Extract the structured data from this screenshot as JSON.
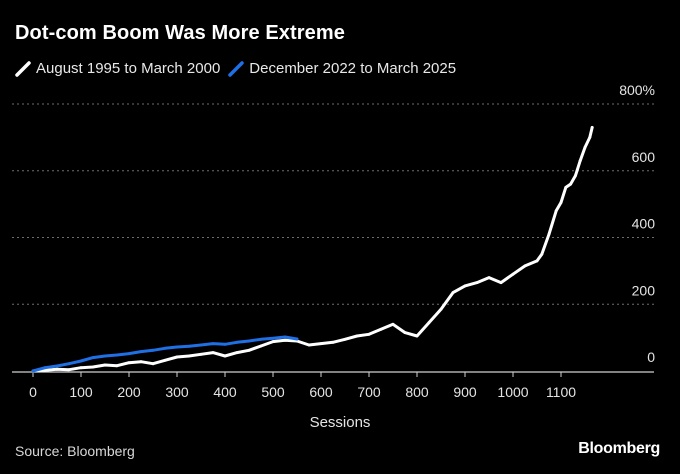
{
  "title": "Dot-com Boom Was More Extreme",
  "source": "Source: Bloomberg",
  "brand": "Bloomberg",
  "colors": {
    "background": "#000000",
    "series1": "#ffffff",
    "series2": "#1f6fe5",
    "grid": "#6e6e6e"
  },
  "chart_data": {
    "type": "line",
    "title": "Dot-com Boom Was More Extreme",
    "xlabel": "Sessions",
    "ylabel": "",
    "xlim": [
      -5,
      1260
    ],
    "ylim": [
      -5,
      820
    ],
    "x_ticks": [
      0,
      100,
      200,
      300,
      400,
      500,
      600,
      700,
      800,
      900,
      1000,
      1100
    ],
    "y_ticks": [
      0,
      200,
      400,
      600,
      800
    ],
    "y_tick_labels": [
      "0",
      "200",
      "400",
      "600",
      "800%"
    ],
    "grid": "horizontal dotted",
    "legend_position": "top-left",
    "series": [
      {
        "name": "August 1995 to March 2000",
        "color": "#ffffff",
        "x": [
          0,
          25,
          50,
          75,
          100,
          125,
          150,
          175,
          200,
          225,
          250,
          275,
          300,
          325,
          350,
          375,
          400,
          425,
          450,
          475,
          500,
          525,
          550,
          575,
          600,
          625,
          650,
          675,
          700,
          725,
          750,
          775,
          800,
          825,
          850,
          875,
          900,
          925,
          950,
          975,
          1000,
          1025,
          1050,
          1060,
          1075,
          1090,
          1100,
          1110,
          1120,
          1130,
          1140,
          1150,
          1160,
          1165
        ],
        "y": [
          0,
          2,
          5,
          4,
          10,
          12,
          18,
          16,
          25,
          28,
          22,
          32,
          42,
          45,
          50,
          55,
          45,
          55,
          62,
          75,
          88,
          92,
          90,
          78,
          82,
          86,
          95,
          105,
          110,
          125,
          140,
          115,
          105,
          145,
          185,
          235,
          255,
          265,
          280,
          265,
          290,
          315,
          330,
          350,
          410,
          480,
          505,
          550,
          560,
          585,
          630,
          670,
          700,
          730
        ]
      },
      {
        "name": "December 2022 to March 2025",
        "color": "#1f6fe5",
        "x": [
          0,
          25,
          50,
          75,
          100,
          125,
          150,
          175,
          200,
          225,
          250,
          275,
          300,
          325,
          350,
          375,
          400,
          425,
          450,
          475,
          500,
          525,
          550
        ],
        "y": [
          0,
          10,
          15,
          22,
          30,
          40,
          45,
          48,
          52,
          58,
          62,
          68,
          72,
          74,
          78,
          82,
          80,
          86,
          90,
          95,
          98,
          102,
          96
        ]
      }
    ]
  }
}
